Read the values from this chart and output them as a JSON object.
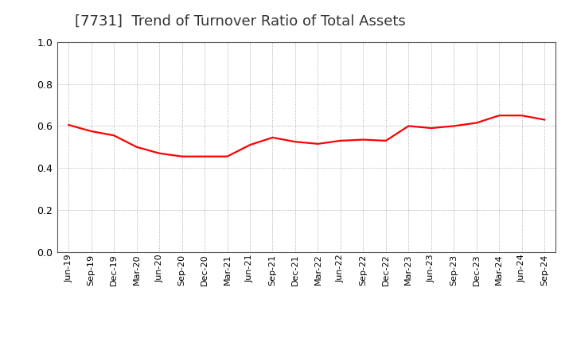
{
  "title": "[7731]  Trend of Turnover Ratio of Total Assets",
  "title_fontsize": 13,
  "title_color": "#333333",
  "line_color": "#FF0000",
  "line_width": 1.6,
  "background_color": "#FFFFFF",
  "grid_color": "#999999",
  "ylim": [
    0.0,
    1.0
  ],
  "yticks": [
    0.0,
    0.2,
    0.4,
    0.6,
    0.8,
    1.0
  ],
  "x_labels": [
    "Jun-19",
    "Sep-19",
    "Dec-19",
    "Mar-20",
    "Jun-20",
    "Sep-20",
    "Dec-20",
    "Mar-21",
    "Jun-21",
    "Sep-21",
    "Dec-21",
    "Mar-22",
    "Jun-22",
    "Sep-22",
    "Dec-22",
    "Mar-23",
    "Jun-23",
    "Sep-23",
    "Dec-23",
    "Mar-24",
    "Jun-24",
    "Sep-24"
  ],
  "values": [
    0.605,
    0.575,
    0.555,
    0.5,
    0.47,
    0.455,
    0.455,
    0.455,
    0.51,
    0.545,
    0.525,
    0.515,
    0.53,
    0.535,
    0.53,
    0.6,
    0.59,
    0.6,
    0.615,
    0.65,
    0.65,
    0.63
  ]
}
